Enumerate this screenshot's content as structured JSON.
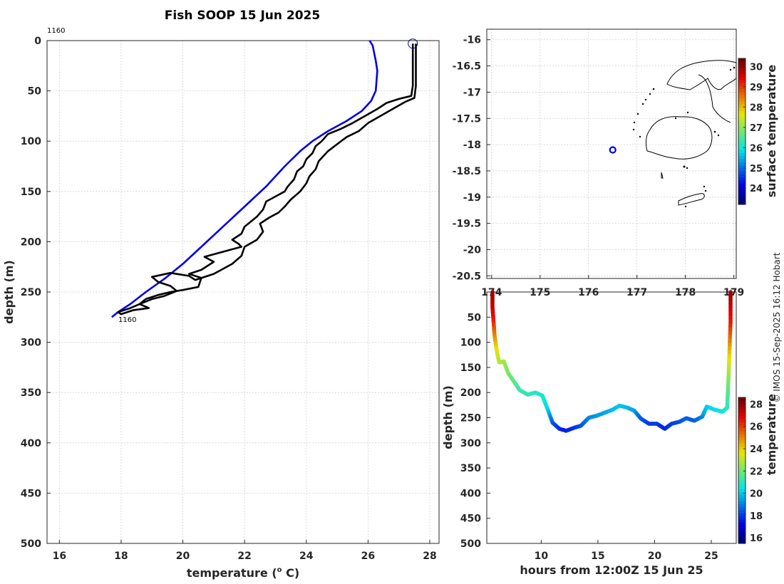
{
  "title": "Fish SOOP 15 Jun 2025",
  "credit": "© IMOS 15-Sep-2025 16:12 Hobart",
  "profile_id_top": "1160",
  "profile_id_bottom": "1160",
  "chart_data": [
    {
      "id": "profile",
      "type": "line",
      "xlabel": "temperature (o C)",
      "xlabel_base": "temperature (",
      "xlabel_sup": "o",
      "xlabel_end": " C)",
      "ylabel": "depth (m)",
      "xlim": [
        15.6,
        28.3
      ],
      "ylim": [
        0,
        500
      ],
      "y_reversed": true,
      "xticks": [
        16,
        18,
        20,
        22,
        24,
        26,
        28
      ],
      "yticks": [
        0,
        50,
        100,
        150,
        200,
        250,
        300,
        350,
        400,
        450,
        500
      ],
      "grid": true,
      "series": [
        {
          "name": "climatology",
          "color": "#0000e6",
          "points": [
            [
              26.05,
              0
            ],
            [
              26.15,
              5
            ],
            [
              26.25,
              20
            ],
            [
              26.3,
              30
            ],
            [
              26.25,
              50
            ],
            [
              26.1,
              60
            ],
            [
              25.8,
              70
            ],
            [
              25.3,
              80
            ],
            [
              24.7,
              90
            ],
            [
              24.2,
              100
            ],
            [
              23.8,
              110
            ],
            [
              23.3,
              125
            ],
            [
              22.7,
              145
            ],
            [
              22.0,
              165
            ],
            [
              21.3,
              185
            ],
            [
              20.6,
              205
            ],
            [
              20.0,
              222
            ],
            [
              19.4,
              237
            ],
            [
              18.8,
              250
            ],
            [
              18.3,
              262
            ],
            [
              17.9,
              270
            ],
            [
              17.7,
              275
            ]
          ]
        },
        {
          "name": "observed",
          "color": "#000000",
          "points": [
            [
              27.45,
              3
            ],
            [
              27.45,
              45
            ],
            [
              27.4,
              55
            ],
            [
              27.0,
              58
            ],
            [
              26.6,
              62
            ],
            [
              26.3,
              68
            ],
            [
              25.9,
              75
            ],
            [
              25.5,
              82
            ],
            [
              25.1,
              88
            ],
            [
              24.7,
              93
            ],
            [
              24.5,
              100
            ],
            [
              24.3,
              105
            ],
            [
              24.2,
              112
            ],
            [
              24.0,
              118
            ],
            [
              23.9,
              125
            ],
            [
              23.7,
              130
            ],
            [
              23.6,
              138
            ],
            [
              23.4,
              145
            ],
            [
              23.3,
              150
            ],
            [
              23.0,
              155
            ],
            [
              22.7,
              160
            ],
            [
              22.6,
              168
            ],
            [
              22.4,
              175
            ],
            [
              22.2,
              180
            ],
            [
              22.0,
              185
            ],
            [
              21.9,
              192
            ],
            [
              21.6,
              198
            ],
            [
              21.8,
              202
            ],
            [
              21.9,
              205
            ],
            [
              21.3,
              210
            ],
            [
              20.7,
              215
            ],
            [
              21.0,
              220
            ],
            [
              20.6,
              228
            ],
            [
              20.2,
              232
            ],
            [
              20.6,
              236
            ],
            [
              20.5,
              245
            ],
            [
              20.0,
              248
            ],
            [
              19.6,
              250
            ],
            [
              19.2,
              253
            ],
            [
              18.8,
              257
            ],
            [
              18.6,
              262
            ],
            [
              18.9,
              266
            ],
            [
              18.4,
              268
            ],
            [
              18.0,
              272
            ],
            [
              17.9,
              270
            ],
            [
              18.3,
              266
            ],
            [
              18.6,
              262
            ],
            [
              19.0,
              257
            ],
            [
              19.4,
              254
            ],
            [
              19.8,
              249
            ],
            [
              19.6,
              244
            ],
            [
              19.2,
              240
            ],
            [
              19.0,
              235
            ],
            [
              19.6,
              231
            ],
            [
              20.2,
              234
            ],
            [
              20.4,
              238
            ],
            [
              21.0,
              232
            ],
            [
              21.6,
              222
            ],
            [
              21.9,
              214
            ],
            [
              22.0,
              205
            ],
            [
              22.4,
              198
            ],
            [
              22.6,
              190
            ],
            [
              22.5,
              182
            ],
            [
              22.8,
              176
            ],
            [
              23.1,
              171
            ],
            [
              23.3,
              165
            ],
            [
              23.5,
              158
            ],
            [
              23.8,
              150
            ],
            [
              24.0,
              142
            ],
            [
              24.1,
              135
            ],
            [
              24.3,
              128
            ],
            [
              24.4,
              120
            ],
            [
              24.7,
              110
            ],
            [
              25.0,
              103
            ],
            [
              25.3,
              96
            ],
            [
              25.7,
              90
            ],
            [
              26.0,
              82
            ],
            [
              26.4,
              75
            ],
            [
              26.8,
              68
            ],
            [
              27.2,
              61
            ],
            [
              27.5,
              57
            ],
            [
              27.55,
              45
            ],
            [
              27.55,
              3
            ]
          ]
        }
      ],
      "marker": {
        "x": 27.45,
        "y": 3
      }
    },
    {
      "id": "map",
      "type": "scatter",
      "xlim": [
        173.9,
        179.05
      ],
      "ylim": [
        -20.55,
        -15.8
      ],
      "xticks": [
        174,
        175,
        176,
        177,
        178,
        179
      ],
      "yticks": [
        -16,
        -16.5,
        -17,
        -17.5,
        -18,
        -18.5,
        -19,
        -19.5,
        -20,
        -20.5
      ],
      "point": {
        "lon": 176.5,
        "lat": -18.1
      },
      "colorbar": {
        "label": "surface temperature",
        "range": [
          23.2,
          30.4
        ],
        "ticks": [
          24,
          25,
          26,
          27,
          28,
          29,
          30
        ]
      }
    },
    {
      "id": "section",
      "type": "scatter",
      "xlabel": "hours from 12:00Z 15 Jun 25",
      "ylabel": "depth (m)",
      "xlim": [
        5.2,
        27.2
      ],
      "ylim": [
        0,
        500
      ],
      "y_reversed": true,
      "xticks": [
        10,
        15,
        20,
        25
      ],
      "yticks": [
        0,
        50,
        100,
        150,
        200,
        250,
        300,
        350,
        400,
        450,
        500
      ],
      "colorbar": {
        "label": "temperature",
        "range": [
          15.5,
          28.6
        ],
        "ticks": [
          16,
          18,
          20,
          22,
          24,
          26,
          28
        ]
      },
      "points": [
        [
          5.7,
          0,
          28
        ],
        [
          5.7,
          30,
          27.5
        ],
        [
          5.8,
          60,
          26.5
        ],
        [
          5.9,
          90,
          25
        ],
        [
          6.1,
          120,
          23.5
        ],
        [
          6.3,
          140,
          23
        ],
        [
          6.7,
          138,
          22.8
        ],
        [
          7.1,
          162,
          22.2
        ],
        [
          7.6,
          178,
          21.8
        ],
        [
          8.1,
          195,
          21.3
        ],
        [
          8.8,
          204,
          21
        ],
        [
          9.5,
          200,
          21
        ],
        [
          10.1,
          206,
          20.8
        ],
        [
          10.6,
          235,
          20.2
        ],
        [
          11.0,
          260,
          18.5
        ],
        [
          11.6,
          272,
          17.8
        ],
        [
          12.2,
          276,
          17.5
        ],
        [
          12.9,
          270,
          17.8
        ],
        [
          13.5,
          266,
          18.2
        ],
        [
          14.2,
          250,
          19
        ],
        [
          14.9,
          246,
          19.3
        ],
        [
          15.6,
          240,
          19.5
        ],
        [
          16.3,
          234,
          19.8
        ],
        [
          16.9,
          226,
          20
        ],
        [
          17.6,
          230,
          19.8
        ],
        [
          18.2,
          236,
          19.5
        ],
        [
          18.8,
          252,
          18.5
        ],
        [
          19.5,
          262,
          18
        ],
        [
          20.2,
          262,
          18
        ],
        [
          20.9,
          272,
          17.6
        ],
        [
          21.5,
          262,
          18
        ],
        [
          22.2,
          258,
          18.2
        ],
        [
          22.8,
          251,
          18.6
        ],
        [
          23.5,
          256,
          18.4
        ],
        [
          24.2,
          248,
          19
        ],
        [
          24.6,
          228,
          20
        ],
        [
          25.3,
          234,
          20.3
        ],
        [
          26.0,
          238,
          20.5
        ],
        [
          26.4,
          230,
          21
        ],
        [
          26.5,
          180,
          22
        ],
        [
          26.6,
          120,
          24
        ],
        [
          26.7,
          60,
          26.5
        ],
        [
          26.7,
          0,
          28
        ]
      ]
    }
  ]
}
